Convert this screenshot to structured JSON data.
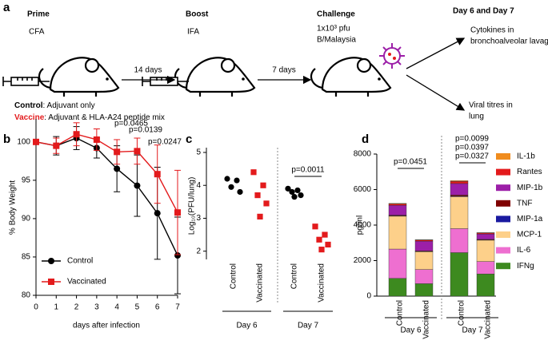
{
  "panel_a": {
    "label": "a",
    "steps": [
      {
        "title": "Prime",
        "details": [
          "CFA"
        ]
      },
      {
        "title": "Boost",
        "details": [
          "IFA"
        ]
      },
      {
        "title": "Challenge",
        "details": [
          "1x10³ pfu",
          "B/Malaysia"
        ]
      }
    ],
    "intervals": [
      "14 days",
      "7 days"
    ],
    "readout": {
      "title": "Day 6 and Day 7",
      "outcomes": [
        [
          "Cytokines in",
          "bronchoalveolar lavage"
        ],
        [
          "Viral titres in",
          "lung"
        ]
      ]
    },
    "groups": [
      {
        "name": "Control",
        "description": ": Adjuvant only",
        "color": "#000000"
      },
      {
        "name": "Vaccine",
        "description": ": Adjuvant & HLA-A24 peptide mix",
        "color": "#e31a1c"
      }
    ]
  },
  "chart_data": [
    {
      "panel_label": "b",
      "type": "line",
      "xlabel": "days after infection",
      "ylabel": "% Body Weight",
      "x": [
        0,
        1,
        2,
        3,
        4,
        5,
        6,
        7
      ],
      "xlim": [
        0,
        7
      ],
      "xticks": [
        0,
        1,
        2,
        3,
        4,
        5,
        6,
        7
      ],
      "ylim": [
        80,
        103
      ],
      "yticks": [
        80,
        85,
        90,
        95,
        100
      ],
      "legend": "lower left",
      "series": [
        {
          "name": "Control",
          "color": "#000000",
          "marker": "circle",
          "values": [
            100,
            99.5,
            100.5,
            99.2,
            96.5,
            94.3,
            90.7,
            85.2
          ],
          "errors": [
            0,
            1.2,
            1.5,
            1.3,
            3,
            4,
            6,
            5
          ]
        },
        {
          "name": "Vaccinated",
          "color": "#e31a1c",
          "marker": "square",
          "values": [
            100,
            99.5,
            101,
            100.3,
            98.7,
            98.8,
            95.8,
            90.8
          ],
          "errors": [
            0,
            1,
            1.5,
            1.4,
            1.6,
            1.7,
            3.8,
            5.5
          ]
        }
      ],
      "annotations": [
        "p=0.0465",
        "p=0.0139",
        "p=0.0247"
      ]
    },
    {
      "panel_label": "c",
      "type": "scatter",
      "ylabel": "Log₁₀(PFU/lung)",
      "ylim": [
        1.75,
        5
      ],
      "yticks": [
        2,
        3,
        4,
        5
      ],
      "categories": [
        "Control",
        "Vaccinated",
        "Control",
        "Vaccinated"
      ],
      "groups": [
        "Day 6",
        "Day 7"
      ],
      "point_colors": [
        "#000000",
        "#e31a1c",
        "#000000",
        "#e31a1c"
      ],
      "points": [
        [
          4.2,
          4.15,
          3.95,
          3.8
        ],
        [
          4.4,
          4.0,
          3.7,
          3.45,
          3.05
        ],
        [
          3.9,
          3.85,
          3.8,
          3.7,
          3.65
        ],
        [
          2.75,
          2.5,
          2.35,
          2.2,
          2.05
        ]
      ],
      "annotations": [
        "p=0.0011"
      ]
    },
    {
      "panel_label": "d",
      "type": "stacked_bar",
      "ylabel": "pg/ml",
      "ylim": [
        0,
        8000
      ],
      "yticks": [
        0,
        2000,
        4000,
        6000,
        8000
      ],
      "categories": [
        "Control",
        "Vaccinated",
        "Control",
        "Vaccinated"
      ],
      "groups": [
        "Day 6",
        "Day 7"
      ],
      "series": [
        {
          "name": "IL-1b",
          "color": "#f08c1e",
          "values": [
            30,
            20,
            40,
            20
          ]
        },
        {
          "name": "Rantes",
          "color": "#e31a1c",
          "values": [
            80,
            60,
            120,
            60
          ]
        },
        {
          "name": "MIP-1b",
          "color": "#9c1fa8",
          "values": [
            550,
            550,
            650,
            300
          ]
        },
        {
          "name": "TNF",
          "color": "#7f0000",
          "values": [
            40,
            30,
            60,
            30
          ]
        },
        {
          "name": "MIP-1a",
          "color": "#1a1aa0",
          "values": [
            20,
            15,
            30,
            15
          ]
        },
        {
          "name": "MCP-1",
          "color": "#fdd08a",
          "values": [
            1850,
            1000,
            1800,
            1200
          ]
        },
        {
          "name": "IL-6",
          "color": "#ee6fd0",
          "values": [
            1650,
            800,
            1350,
            700
          ]
        },
        {
          "name": "IFNg",
          "color": "#3d8a1f",
          "values": [
            1000,
            700,
            2450,
            1250
          ]
        }
      ],
      "annotations": [
        {
          "text": "p=0.0451",
          "color": "#f07f00"
        },
        {
          "text": "p=0.0099",
          "color": "#b000c0"
        },
        {
          "text": "p=0.0397",
          "color": "#e31a1c"
        },
        {
          "text": "p=0.0327",
          "color": "#2020c0"
        }
      ]
    }
  ]
}
